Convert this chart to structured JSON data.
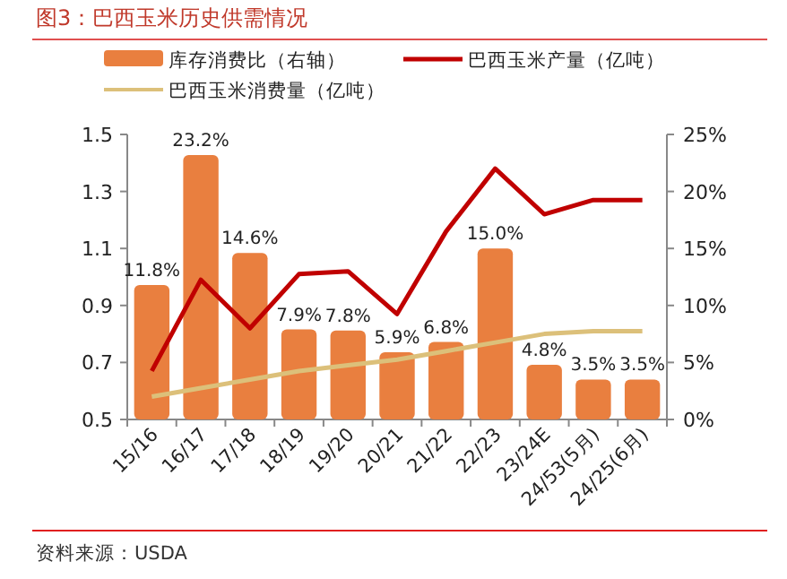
{
  "chart_data": {
    "type": "bar",
    "title": "图3：巴西玉米历史供需情况",
    "categories": [
      "15/16",
      "16/17",
      "17/18",
      "18/19",
      "19/20",
      "20/21",
      "21/22",
      "22/23",
      "23/24E",
      "24/53(5月)",
      "24/25(6月)"
    ],
    "series": [
      {
        "name": "库存消费比（右轴）",
        "axis": "y2",
        "color": "#e97f3f",
        "values": [
          11.8,
          23.2,
          14.6,
          7.9,
          7.8,
          5.9,
          6.8,
          15.0,
          4.8,
          3.5,
          3.5
        ],
        "value_labels": [
          "11.8%",
          "23.2%",
          "14.6%",
          "7.9%",
          "7.8%",
          "5.9%",
          "6.8%",
          "15.0%",
          "4.8%",
          "3.5%",
          "3.5%"
        ]
      },
      {
        "name": "巴西玉米产量（亿吨）",
        "type": "line",
        "color": "#c00000",
        "values": [
          0.67,
          0.99,
          0.82,
          1.01,
          1.02,
          0.87,
          1.16,
          1.38,
          1.22,
          1.27,
          1.27
        ]
      },
      {
        "name": "巴西玉米消费量（亿吨）",
        "type": "line",
        "color": "#dcc07a",
        "values": [
          0.58,
          0.61,
          0.64,
          0.67,
          0.69,
          0.71,
          0.74,
          0.77,
          0.8,
          0.81,
          0.81
        ]
      }
    ],
    "ylim": [
      0.5,
      1.5
    ],
    "yticks": [
      0.5,
      0.7,
      0.9,
      1.1,
      1.3,
      1.5
    ],
    "y2lim": [
      0,
      25
    ],
    "y2ticks": [
      {
        "value": 0,
        "label": "0%"
      },
      {
        "value": 5,
        "label": "5%"
      },
      {
        "value": 10,
        "label": "10%"
      },
      {
        "value": 15,
        "label": "15%"
      },
      {
        "value": 20,
        "label": "20%"
      },
      {
        "value": 25,
        "label": "25%"
      }
    ],
    "legend": "top",
    "grid": false,
    "annotations": [
      "资料来源：USDA"
    ]
  }
}
